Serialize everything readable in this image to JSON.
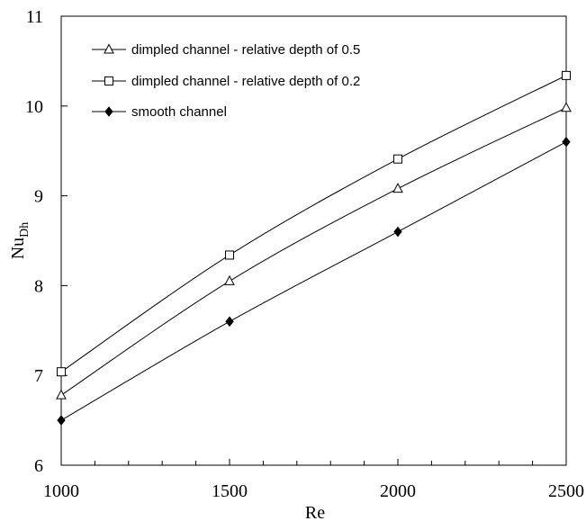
{
  "chart_data": {
    "type": "line",
    "xlabel": "Re",
    "ylabel_main": "Nu",
    "ylabel_sub": "Dh",
    "xlim": [
      1000,
      2500
    ],
    "ylim": [
      6,
      11
    ],
    "xticks": [
      1000,
      1500,
      2000,
      2500
    ],
    "yticks": [
      6,
      7,
      8,
      9,
      10,
      11
    ],
    "x_minor_step": 100,
    "grid": false,
    "legend_position": "top-left",
    "series": [
      {
        "name": "dimpled channel - relative depth of 0.5",
        "marker": "triangle",
        "x": [
          1000,
          1500,
          2000,
          2500
        ],
        "y": [
          6.78,
          8.05,
          9.08,
          9.98
        ]
      },
      {
        "name": "dimpled channel - relative depth of 0.2",
        "marker": "square",
        "x": [
          1000,
          1500,
          2000,
          2500
        ],
        "y": [
          7.04,
          8.34,
          9.41,
          10.34
        ]
      },
      {
        "name": "smooth channel",
        "marker": "diamond",
        "x": [
          1000,
          1500,
          2000,
          2500
        ],
        "y": [
          6.5,
          7.6,
          8.6,
          9.6
        ]
      }
    ]
  }
}
